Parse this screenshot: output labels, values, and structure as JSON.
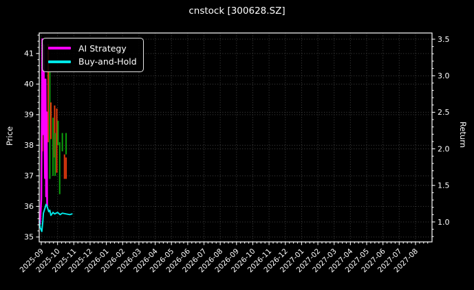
{
  "title": "cnstock [300628.SZ]",
  "colors": {
    "background": "#000000",
    "text": "#ffffff",
    "spine": "#ffffff",
    "grid": "#454545",
    "ai_strategy": "#ff00ff",
    "buy_and_hold": "#00e8e8",
    "candle_up": "#0da10d",
    "candle_down": "#e43a0e"
  },
  "legend": {
    "items": [
      {
        "label": "AI Strategy",
        "color": "#ff00ff"
      },
      {
        "label": "Buy-and-Hold",
        "color": "#00e8e8"
      }
    ]
  },
  "axes": {
    "price": {
      "title": "Price"
    },
    "return": {
      "title": "Return"
    }
  },
  "chart_data": {
    "type": "mixed",
    "subtype": "candlestick-with-return-lines",
    "title": "cnstock [300628.SZ]",
    "background": "black",
    "grid": true,
    "legend_position": "upper-left",
    "x_axis": {
      "tick_labels": [
        "2025-09",
        "2025-10",
        "2025-11",
        "2025-12",
        "2026-01",
        "2026-02",
        "2026-03",
        "2026-04",
        "2026-05",
        "2026-06",
        "2026-07",
        "2026-08",
        "2026-09",
        "2026-10",
        "2026-11",
        "2026-12",
        "2027-01",
        "2027-02",
        "2027-03",
        "2027-04",
        "2027-05",
        "2027-06",
        "2027-07",
        "2027-08"
      ],
      "tick_rotation_deg": -45
    },
    "left_axis": {
      "label": "Price",
      "ticks": [
        35,
        36,
        37,
        38,
        39,
        40,
        41
      ],
      "range": [
        34.84,
        41.67
      ]
    },
    "right_axis": {
      "label": "Return",
      "ticks": [
        1.0,
        1.5,
        2.0,
        2.5,
        3.0,
        3.5
      ],
      "range": [
        0.727,
        3.585
      ]
    },
    "candles": [
      {
        "date": "2025-09-03",
        "high": 40.3,
        "low": 37.8,
        "dir": "down"
      },
      {
        "date": "2025-09-14",
        "high": 41.3,
        "low": 38.1,
        "dir": "down"
      },
      {
        "date": "2025-09-17",
        "high": 40.4,
        "low": 36.9,
        "dir": "up"
      },
      {
        "date": "2025-09-19",
        "high": 39.4,
        "low": 38.2,
        "dir": "down"
      },
      {
        "date": "2025-09-23",
        "high": 38.9,
        "low": 37.0,
        "dir": "up"
      },
      {
        "date": "2025-09-26",
        "high": 39.3,
        "low": 37.6,
        "dir": "down"
      },
      {
        "date": "2025-09-27",
        "high": 38.4,
        "low": 37.0,
        "dir": "up"
      },
      {
        "date": "2025-09-30",
        "high": 39.2,
        "low": 37.1,
        "dir": "down"
      },
      {
        "date": "2025-10-02",
        "high": 38.8,
        "low": 38.0,
        "dir": "up"
      },
      {
        "date": "2025-10-05",
        "high": 38.1,
        "low": 36.4,
        "dir": "up"
      },
      {
        "date": "2025-10-10",
        "high": 38.4,
        "low": 37.8,
        "dir": "up"
      },
      {
        "date": "2025-10-14",
        "high": 37.7,
        "low": 36.9,
        "dir": "down"
      },
      {
        "date": "2025-10-17",
        "high": 38.4,
        "low": 37.7,
        "dir": "up"
      },
      {
        "date": "2025-10-17",
        "high": 37.6,
        "low": 36.9,
        "dir": "down"
      }
    ],
    "series": [
      {
        "name": "AI Strategy",
        "axis": "right",
        "color": "#ff00ff",
        "width": 2.6,
        "points": [
          {
            "date": "2025-08-28",
            "value": 1.0
          },
          {
            "date": "2025-08-29",
            "value": 0.97
          },
          {
            "date": "2025-09-01",
            "value": 1.31
          },
          {
            "date": "2025-09-03",
            "value": 3.5
          },
          {
            "date": "2025-09-04",
            "value": 2.2
          },
          {
            "date": "2025-09-05",
            "value": 3.42
          },
          {
            "date": "2025-09-08",
            "value": 1.6
          },
          {
            "date": "2025-09-09",
            "value": 2.95
          },
          {
            "date": "2025-09-10",
            "value": 1.35
          },
          {
            "date": "2025-09-11",
            "value": 2.5
          },
          {
            "date": "2025-09-12",
            "value": 1.22
          }
        ]
      },
      {
        "name": "Buy-and-Hold",
        "axis": "right",
        "color": "#00e8e8",
        "width": 2.0,
        "points": [
          {
            "date": "2025-08-28",
            "value": 1.02
          },
          {
            "date": "2025-08-29",
            "value": 0.93
          },
          {
            "date": "2025-09-02",
            "value": 0.87
          },
          {
            "date": "2025-09-04",
            "value": 1.01
          },
          {
            "date": "2025-09-05",
            "value": 1.12
          },
          {
            "date": "2025-09-08",
            "value": 1.19
          },
          {
            "date": "2025-09-10",
            "value": 1.24
          },
          {
            "date": "2025-09-12",
            "value": 1.21
          },
          {
            "date": "2025-09-15",
            "value": 1.14
          },
          {
            "date": "2025-09-17",
            "value": 1.16
          },
          {
            "date": "2025-09-19",
            "value": 1.09
          },
          {
            "date": "2025-09-23",
            "value": 1.13
          },
          {
            "date": "2025-09-26",
            "value": 1.11
          },
          {
            "date": "2025-10-01",
            "value": 1.13
          },
          {
            "date": "2025-10-06",
            "value": 1.1
          },
          {
            "date": "2025-10-10",
            "value": 1.12
          },
          {
            "date": "2025-10-17",
            "value": 1.11
          },
          {
            "date": "2025-10-24",
            "value": 1.1
          },
          {
            "date": "2025-10-28",
            "value": 1.11
          }
        ]
      }
    ]
  }
}
